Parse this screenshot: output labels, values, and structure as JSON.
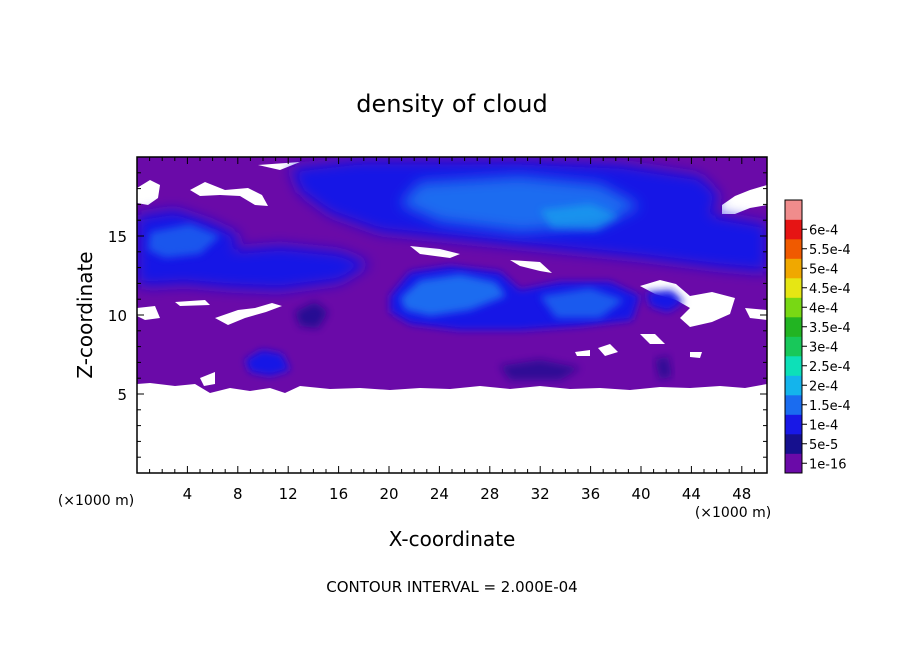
{
  "chart_data": {
    "type": "heatmap",
    "title": "density of cloud",
    "xlabel": "X-coordinate",
    "ylabel": "Z-coordinate",
    "x_unit": "(×1000 m)",
    "x_unit_right": "(×1000 m)",
    "xlim": [
      0,
      50
    ],
    "ylim": [
      0,
      20
    ],
    "x_ticks": [
      4,
      8,
      12,
      16,
      20,
      24,
      28,
      32,
      36,
      40,
      44,
      48
    ],
    "y_ticks": [
      5,
      10,
      15
    ],
    "footer": "CONTOUR INTERVAL = 2.000E-04",
    "grid": false,
    "legend": "right",
    "colorbar": {
      "labels": [
        "1e-16",
        "5e-5",
        "1e-4",
        "1.5e-4",
        "2e-4",
        "2.5e-4",
        "3e-4",
        "3.5e-4",
        "4e-4",
        "4.5e-4",
        "5e-4",
        "5.5e-4",
        "6e-4"
      ],
      "colors": [
        "#6a0aa8",
        "#16108e",
        "#1818e6",
        "#1a6cf0",
        "#14b4ec",
        "#0de0b8",
        "#18c85a",
        "#22b422",
        "#78d814",
        "#e6e614",
        "#f0a800",
        "#f05a00",
        "#e61414",
        "#f08c8c"
      ]
    },
    "field": {
      "background_color": "#6a0aa8",
      "cloud_base_z": 5.4,
      "cloud_top_z": 19.5,
      "high_density_regions": [
        {
          "label": "upper band",
          "x_range": [
            12,
            50
          ],
          "z_range": [
            13,
            19.5
          ],
          "max_value": 0.00015
        },
        {
          "label": "left-middle band",
          "x_range": [
            0,
            20
          ],
          "z_range": [
            11.5,
            15.5
          ],
          "max_value": 0.00015
        },
        {
          "label": "center core",
          "x_range": [
            20,
            40
          ],
          "z_range": [
            9.5,
            12.5
          ],
          "max_value": 0.00015
        },
        {
          "label": "lower-left cell",
          "x_range": [
            7,
            12
          ],
          "z_range": [
            6,
            7.5
          ],
          "max_value": 0.0001
        }
      ]
    }
  }
}
